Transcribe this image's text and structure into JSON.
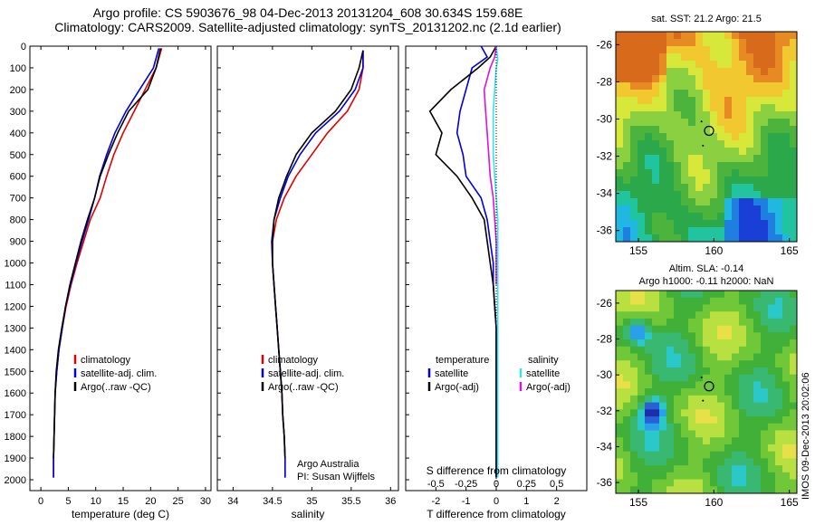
{
  "title_line1": "Argo profile: CS 5903676_98 04-Dec-2013 20131204_608 30.634S 159.68E",
  "title_line2": "Climatology: CARS2009. Satellite-adjusted climatology: synTS_20131202.nc (2.1d earlier)",
  "credit_line1": "Argo Australia",
  "credit_line2": "PI: Susan Wijffels",
  "stamp": "IMOS 09-Dec-2013 20:02:06",
  "colors": {
    "climatology": "#e00000",
    "satellite": "#0000dd",
    "argo": "#000000",
    "sat_salinity": "#33e5ee",
    "argo_salinity": "#e010e0"
  },
  "chart_data": [
    {
      "type": "line",
      "xlabel": "temperature (deg C)",
      "xlim": [
        -2,
        31
      ],
      "xticks": [
        0,
        5,
        10,
        15,
        20,
        25,
        30
      ],
      "ylim": [
        2050,
        0
      ],
      "yticks": [
        0,
        100,
        200,
        300,
        400,
        500,
        600,
        700,
        800,
        900,
        1000,
        1100,
        1200,
        1300,
        1400,
        1500,
        1600,
        1700,
        1800,
        1900,
        2000
      ],
      "legend": [
        "climatology",
        "satellite-adj. clim.",
        "Argo(..raw -QC)"
      ],
      "series": [
        {
          "name": "climatology",
          "color": "#e00000",
          "x": [
            22.0,
            21.0,
            19.0,
            17.0,
            15.0,
            13.3,
            12.0,
            10.8,
            9.0,
            7.8,
            6.6,
            5.5,
            4.6,
            3.9,
            3.3,
            2.9,
            2.6,
            2.5,
            2.4,
            2.3,
            2.3
          ],
          "y": [
            10,
            100,
            200,
            300,
            400,
            500,
            600,
            700,
            800,
            900,
            1000,
            1100,
            1200,
            1300,
            1400,
            1500,
            1600,
            1700,
            1800,
            1900,
            1990
          ]
        },
        {
          "name": "satellite-adj. clim.",
          "color": "#0000dd",
          "x": [
            21.5,
            20.5,
            18.0,
            15.5,
            13.5,
            12.0,
            10.7,
            9.8,
            8.7,
            7.5,
            6.4,
            5.4,
            4.5,
            3.9,
            3.3,
            2.9,
            2.6,
            2.5,
            2.4,
            2.3,
            2.3
          ],
          "y": [
            10,
            100,
            200,
            300,
            400,
            500,
            600,
            700,
            800,
            900,
            1000,
            1100,
            1200,
            1300,
            1400,
            1500,
            1600,
            1700,
            1800,
            1900,
            1990
          ]
        },
        {
          "name": "Argo(..raw -QC)",
          "color": "#000000",
          "x": [
            21.8,
            21.0,
            19.5,
            16.0,
            14.0,
            12.3,
            10.8,
            9.8,
            8.5,
            7.3,
            6.3,
            5.3,
            4.5,
            3.8,
            3.2,
            2.8,
            2.6,
            2.5,
            2.4,
            2.3
          ],
          "y": [
            10,
            100,
            200,
            300,
            400,
            500,
            600,
            700,
            800,
            900,
            1000,
            1100,
            1200,
            1300,
            1400,
            1500,
            1600,
            1700,
            1800,
            1900
          ]
        }
      ]
    },
    {
      "type": "line",
      "xlabel": "salinity",
      "xlim": [
        33.8,
        36.1
      ],
      "xticks": [
        34,
        34.5,
        35,
        35.5,
        36
      ],
      "ylim": [
        2050,
        0
      ],
      "legend": [
        "climatology",
        "satellite-adj. clim.",
        "Argo(..raw -QC)"
      ],
      "series": [
        {
          "name": "climatology",
          "color": "#e00000",
          "x": [
            35.65,
            35.65,
            35.6,
            35.45,
            35.2,
            35.0,
            34.8,
            34.65,
            34.55,
            34.5,
            34.5,
            34.52,
            34.54,
            34.56,
            34.58,
            34.6,
            34.62,
            34.63,
            34.65,
            34.66,
            34.66
          ],
          "y": [
            20,
            100,
            200,
            300,
            400,
            500,
            600,
            700,
            800,
            900,
            1000,
            1100,
            1200,
            1300,
            1400,
            1500,
            1600,
            1700,
            1800,
            1900,
            1990
          ]
        },
        {
          "name": "satellite-adj. clim.",
          "color": "#0000dd",
          "x": [
            35.65,
            35.65,
            35.55,
            35.35,
            35.05,
            34.85,
            34.7,
            34.6,
            34.52,
            34.49,
            34.5,
            34.52,
            34.54,
            34.56,
            34.58,
            34.6,
            34.62,
            34.63,
            34.65,
            34.66,
            34.66
          ],
          "y": [
            20,
            100,
            200,
            300,
            400,
            500,
            600,
            700,
            800,
            900,
            1000,
            1100,
            1200,
            1300,
            1400,
            1500,
            1600,
            1700,
            1800,
            1900,
            1990
          ]
        },
        {
          "name": "Argo(..raw -QC)",
          "color": "#000000",
          "x": [
            35.65,
            35.6,
            35.5,
            35.3,
            35.0,
            34.8,
            34.68,
            34.58,
            34.52,
            34.5,
            34.5,
            34.52,
            34.54,
            34.56,
            34.58,
            34.6,
            34.62,
            34.63,
            34.65,
            34.66
          ],
          "y": [
            20,
            100,
            200,
            300,
            400,
            500,
            600,
            700,
            800,
            900,
            1000,
            1100,
            1200,
            1300,
            1400,
            1500,
            1600,
            1700,
            1800,
            1900
          ]
        }
      ]
    },
    {
      "type": "line",
      "xlabel": "T difference from climatology",
      "xlabel2": "S difference from climatology",
      "xlim": [
        -3,
        3
      ],
      "xticks": [
        -2,
        -1,
        0,
        1,
        2
      ],
      "xticks_S": [
        -0.5,
        -0.25,
        0,
        0.25,
        0.5
      ],
      "ylim": [
        2050,
        0
      ],
      "legend_headers": [
        "temperature",
        "salinity"
      ],
      "legend": [
        "satellite",
        "Argo(-adj)",
        "satellite",
        "Argo(-adj)"
      ],
      "series": [
        {
          "name": "satellite",
          "color": "#0000dd",
          "x": [
            -0.5,
            -0.3,
            -0.8,
            -1.0,
            -1.2,
            -1.3,
            -1.1,
            -1.0,
            -0.5,
            -0.3,
            -0.2,
            -0.1,
            -0.1,
            -0.05,
            0,
            0,
            0,
            0
          ],
          "y": [
            0,
            50,
            100,
            200,
            300,
            400,
            500,
            600,
            700,
            800,
            900,
            1000,
            1100,
            1200,
            1300,
            1500,
            1700,
            1990
          ]
        },
        {
          "name": "Argo(-adj)",
          "color": "#000000",
          "x": [
            0,
            -0.2,
            -0.6,
            -1.5,
            -2.2,
            -1.8,
            -2.0,
            -1.3,
            -0.8,
            -0.4,
            -0.3,
            -0.2,
            -0.1,
            -0.05,
            0,
            0,
            0
          ],
          "y": [
            0,
            50,
            100,
            200,
            300,
            400,
            500,
            600,
            700,
            800,
            900,
            1000,
            1100,
            1200,
            1300,
            1600,
            1990
          ]
        },
        {
          "name": "satellite",
          "color": "#33e5ee",
          "x": [
            0,
            0.05,
            0,
            -0.05,
            -0.1,
            -0.1,
            -0.1,
            -0.05,
            0,
            0.05,
            0.05,
            0.05,
            0.05,
            0.05,
            0.05,
            0.05,
            0.05
          ],
          "y": [
            0,
            60,
            100,
            200,
            300,
            400,
            500,
            600,
            700,
            800,
            900,
            1000,
            1200,
            1400,
            1600,
            1800,
            1990
          ]
        },
        {
          "name": "Argo(-adj)",
          "color": "#e010e0",
          "x": [
            0,
            -0.05,
            -0.2,
            -0.4,
            -0.35,
            -0.3,
            -0.25,
            -0.2,
            -0.1,
            -0.05,
            0,
            0,
            0
          ],
          "y": [
            0,
            50,
            100,
            200,
            300,
            400,
            500,
            600,
            700,
            800,
            900,
            1000,
            1100
          ]
        }
      ]
    },
    {
      "type": "heatmap",
      "title": "sat. SST: 21.2  Argo: 21.5",
      "xticks": [
        155,
        160,
        165
      ],
      "yticks": [
        -26,
        -28,
        -30,
        -32,
        -34,
        -36
      ],
      "xlim": [
        153.5,
        165.5
      ],
      "ylim": [
        -36.6,
        -25.3
      ],
      "float_position": {
        "lon": 159.68,
        "lat": -30.634
      }
    },
    {
      "type": "heatmap",
      "title": "Altim. SLA: -0.14",
      "subtitle": "Argo h1000: -0.11 h2000: NaN",
      "xticks": [
        155,
        160,
        165
      ],
      "yticks": [
        -26,
        -28,
        -30,
        -32,
        -34,
        -36
      ],
      "xlim": [
        153.5,
        165.5
      ],
      "ylim": [
        -36.6,
        -25.3
      ],
      "float_position": {
        "lon": 159.68,
        "lat": -30.634
      }
    }
  ]
}
